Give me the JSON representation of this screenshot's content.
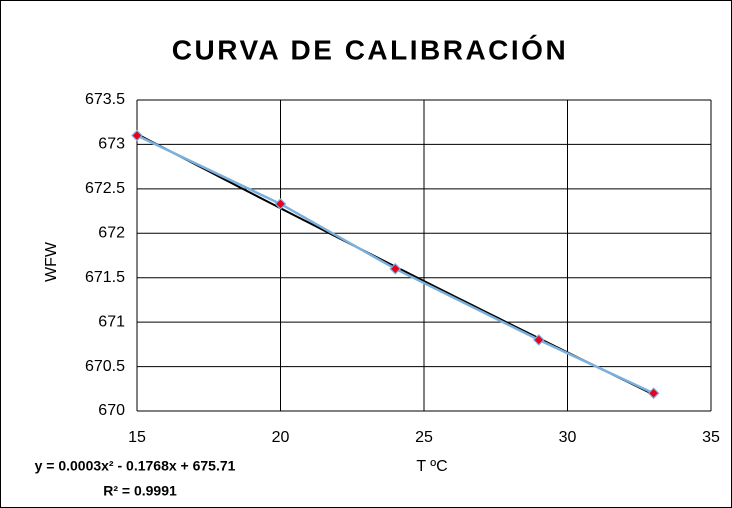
{
  "chart_data": {
    "type": "scatter",
    "title": "CURVA DE CALIBRACIÓN",
    "x_label": "T ºC",
    "y_label": "WFW",
    "x": [
      15,
      20,
      24,
      29,
      33
    ],
    "values": [
      673.1,
      672.33,
      671.6,
      670.8,
      670.2
    ],
    "color": "#7cb0dc",
    "marker_color": "#e8001c",
    "trendline_color": "#000000",
    "xlim": [
      15,
      35
    ],
    "xticks": [
      15,
      20,
      25,
      30,
      35
    ],
    "ylim": [
      670,
      673.5
    ],
    "yticks": [
      670,
      670.5,
      671,
      671.5,
      672,
      672.5,
      673,
      673.5
    ],
    "grid": true,
    "equation": "y = 0.0003x² - 0.1768x + 675.71",
    "r_squared": "R² = 0.9991"
  }
}
